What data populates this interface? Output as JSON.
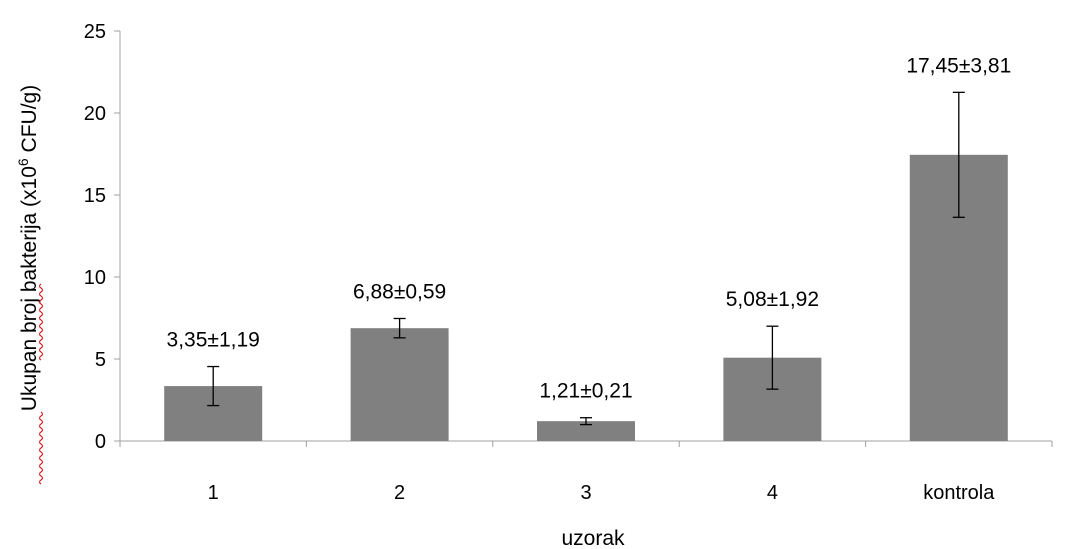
{
  "chart_data": {
    "type": "bar",
    "categories": [
      "1",
      "2",
      "3",
      "4",
      "kontrola"
    ],
    "values": [
      3.35,
      6.88,
      1.21,
      5.08,
      17.45
    ],
    "errors": [
      1.19,
      0.59,
      0.21,
      1.92,
      3.81
    ],
    "data_labels": [
      "3,35±1,19",
      "6,88±0,59",
      "1,21±0,21",
      "5,08±1,92",
      "17,45±3,81"
    ],
    "title": "",
    "xlabel": "uzorak",
    "ylabel_main": "Ukupan broj bakterija (x10",
    "ylabel_sup": "6",
    "ylabel_end": " CFU/g)",
    "ylim": [
      0,
      25
    ],
    "yticks": [
      0,
      5,
      10,
      15,
      20,
      25
    ],
    "grid": false,
    "legend": "none",
    "bar_color": "#808080",
    "error_bar_color": "#000000",
    "axis_color": "#a0a0a0"
  }
}
